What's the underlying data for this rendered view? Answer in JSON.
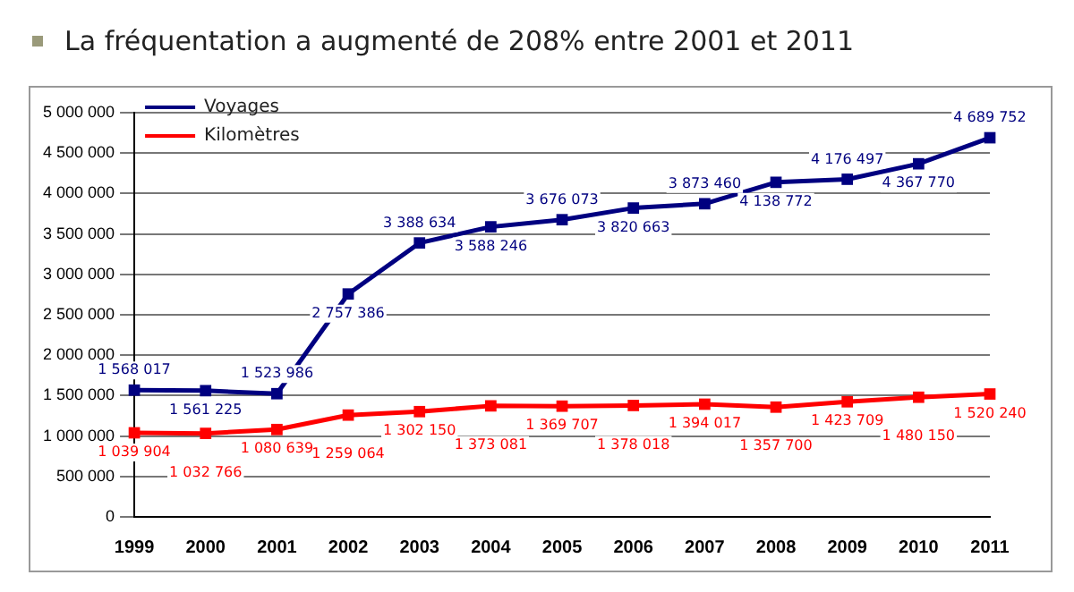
{
  "chart_data": {
    "type": "line",
    "title": "La fréquentation a augmenté de 208% entre 2001 et 2011",
    "categories": [
      "1999",
      "2000",
      "2001",
      "2002",
      "2003",
      "2004",
      "2005",
      "2006",
      "2007",
      "2008",
      "2009",
      "2010",
      "2011"
    ],
    "series": [
      {
        "name": "Voyages",
        "color": "#000080",
        "values": [
          1568017,
          1561225,
          1523986,
          2757386,
          3388634,
          3588246,
          3676073,
          3820663,
          3873460,
          4138772,
          4176497,
          4367770,
          4689752
        ]
      },
      {
        "name": "Kilomètres",
        "color": "#ff0000",
        "values": [
          1039904,
          1032766,
          1080639,
          1259064,
          1302150,
          1373081,
          1369707,
          1378018,
          1394017,
          1357700,
          1423709,
          1480150,
          1520240
        ]
      }
    ],
    "ylim": [
      0,
      5000000
    ],
    "yticks": [
      0,
      500000,
      1000000,
      1500000,
      2000000,
      2500000,
      3000000,
      3500000,
      4000000,
      4500000,
      5000000
    ],
    "grid": "y",
    "legend": "top left",
    "marker": "square",
    "line_style": "solid",
    "data_labels": true
  }
}
